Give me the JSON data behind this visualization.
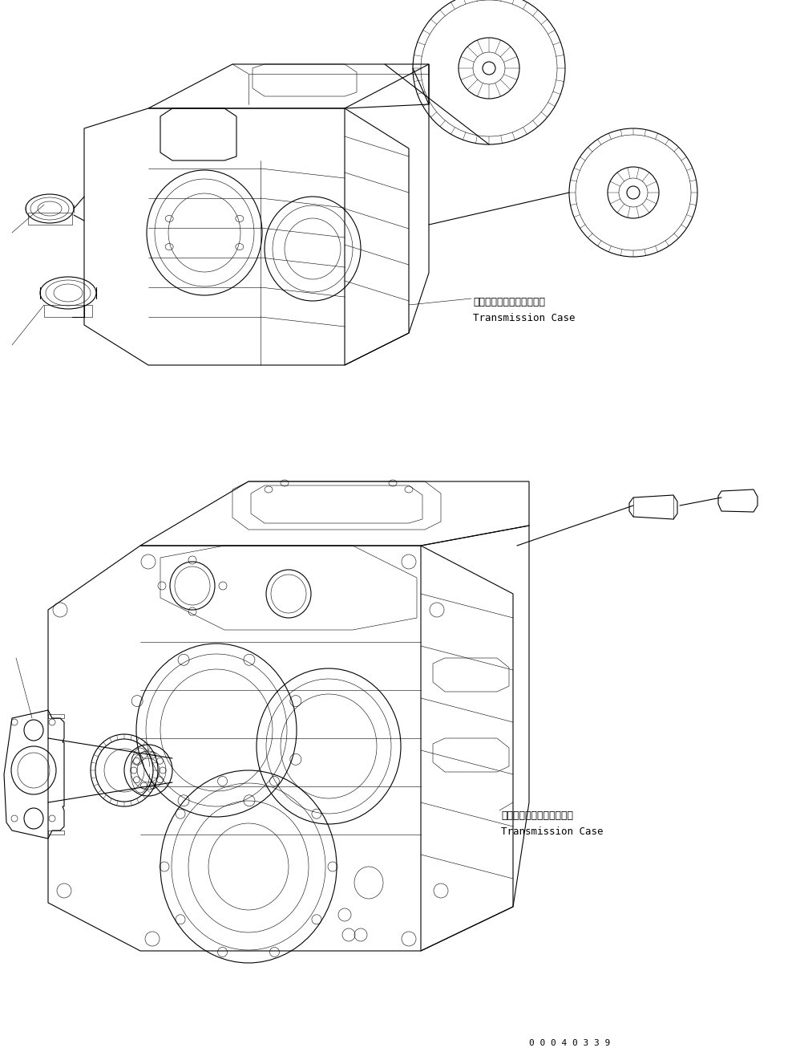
{
  "background_color": "#ffffff",
  "line_color": "#000000",
  "lw": 0.8,
  "tlw": 0.4,
  "label1_ja": "トランスミッションケース",
  "label1_en": "Transmission Case",
  "label2_ja": "トランスミッションケース",
  "label2_en": "Transmission Case",
  "part_number": "0 0 0 4 0 3 3 9",
  "fs_label": 9,
  "fs_part": 8
}
